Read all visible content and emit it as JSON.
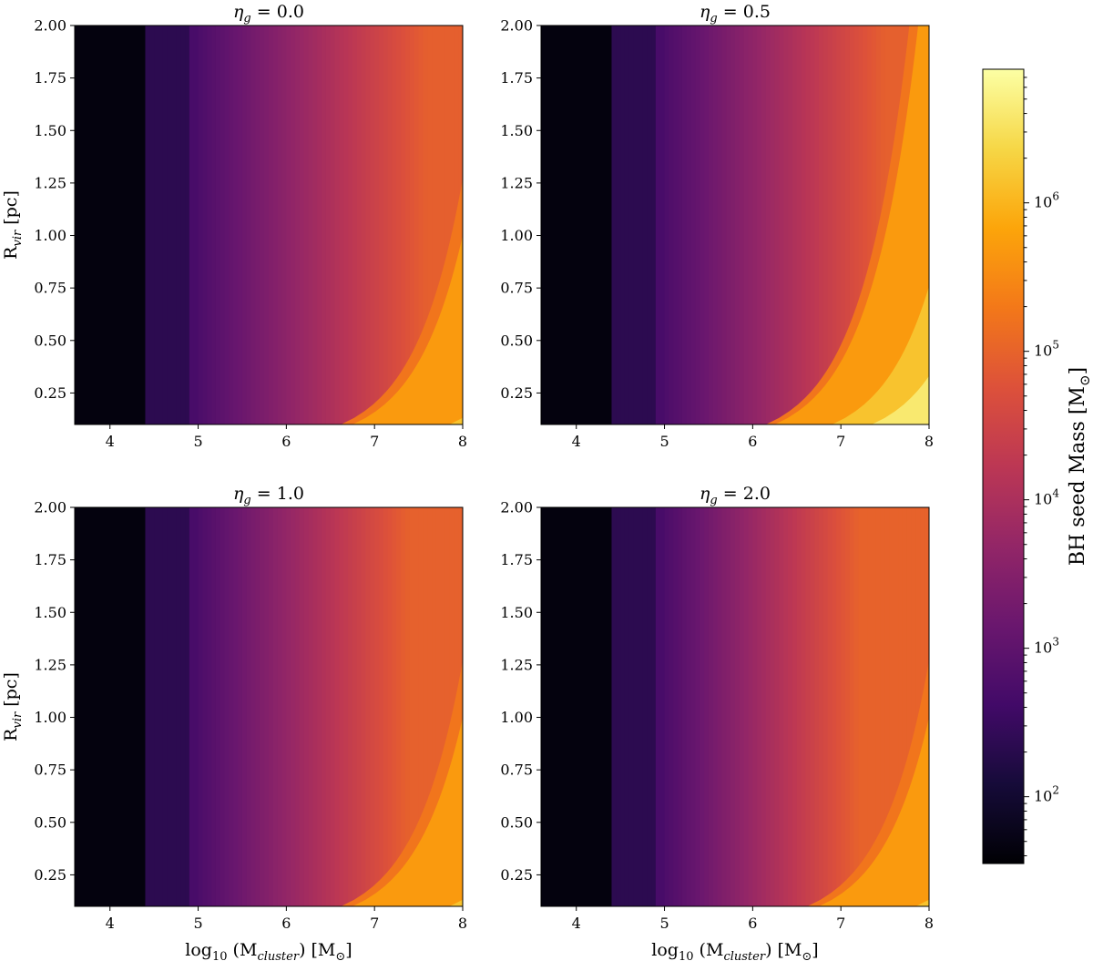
{
  "chart_data": [
    {
      "type": "heatmap",
      "title": "η_g = 0.0",
      "title_symbol": "η",
      "title_sub": "g",
      "title_rest": " = 0.0",
      "eta_g": 0.0,
      "xlabel": "log10 (M_cluster)  [M⊙]",
      "ylabel": "R_vir [pc]",
      "xlim": [
        3.6,
        8.0
      ],
      "ylim": [
        0.1,
        2.0
      ],
      "xticks": [
        "4",
        "5",
        "6",
        "7",
        "8"
      ],
      "yticks": [
        "0.25",
        "0.50",
        "0.75",
        "1.00",
        "1.25",
        "1.50",
        "1.75",
        "2.00"
      ]
    },
    {
      "type": "heatmap",
      "title": "η_g = 0.5",
      "title_symbol": "η",
      "title_sub": "g",
      "title_rest": " = 0.5",
      "eta_g": 0.5,
      "xlabel": "log10 (M_cluster)  [M⊙]",
      "ylabel": "R_vir [pc]",
      "xlim": [
        3.6,
        8.0
      ],
      "ylim": [
        0.1,
        2.0
      ],
      "xticks": [
        "4",
        "5",
        "6",
        "7",
        "8"
      ],
      "yticks": [
        "0.25",
        "0.50",
        "0.75",
        "1.00",
        "1.25",
        "1.50",
        "1.75",
        "2.00"
      ]
    },
    {
      "type": "heatmap",
      "title": "η_g = 1.0",
      "title_symbol": "η",
      "title_sub": "g",
      "title_rest": " = 1.0",
      "eta_g": 1.0,
      "xlabel": "log10 (M_cluster)  [M⊙]",
      "ylabel": "R_vir [pc]",
      "xlim": [
        3.6,
        8.0
      ],
      "ylim": [
        0.1,
        2.0
      ],
      "xticks": [
        "4",
        "5",
        "6",
        "7",
        "8"
      ],
      "yticks": [
        "0.25",
        "0.50",
        "0.75",
        "1.00",
        "1.25",
        "1.50",
        "1.75",
        "2.00"
      ]
    },
    {
      "type": "heatmap",
      "title": "η_g = 2.0",
      "title_symbol": "η",
      "title_sub": "g",
      "title_rest": " = 2.0",
      "eta_g": 2.0,
      "xlabel": "log10 (M_cluster)  [M⊙]",
      "ylabel": "R_vir [pc]",
      "xlim": [
        3.6,
        8.0
      ],
      "ylim": [
        0.1,
        2.0
      ],
      "xticks": [
        "4",
        "5",
        "6",
        "7",
        "8"
      ],
      "yticks": [
        "0.25",
        "0.50",
        "0.75",
        "1.00",
        "1.25",
        "1.50",
        "1.75",
        "2.00"
      ]
    }
  ],
  "axis_text": {
    "x_prefix": "log",
    "x_prefix_sub": "10",
    "x_open": " (M",
    "x_sub": "cluster",
    "x_close": ")  [M",
    "x_unit": "⊙",
    "x_end": "]",
    "y_prefix": "R",
    "y_sub": "vir",
    "y_rest": " [pc]"
  },
  "colorbar": {
    "label": "BH seed Mass  [M⊙]",
    "label_text": "BH seed Mass  [M",
    "label_unit": "⊙",
    "label_end": "]",
    "scale": "log",
    "range_log10": [
      1.55,
      6.9
    ],
    "colormap": "inferno",
    "tick_base": "10",
    "tick_exponents": [
      "2",
      "3",
      "4",
      "5",
      "6"
    ]
  }
}
